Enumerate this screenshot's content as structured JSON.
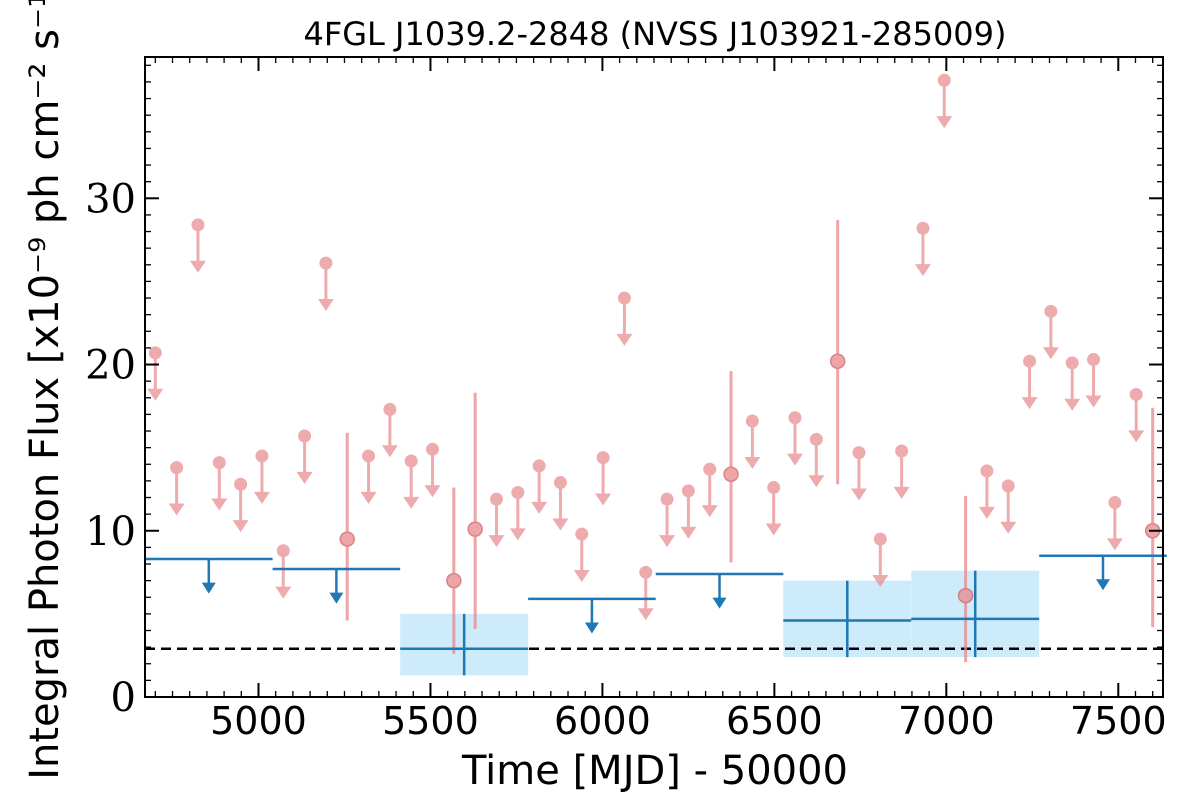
{
  "chart_data": {
    "type": "scatter",
    "title": "4FGL J1039.2-2848 (NVSS J103921-285009)",
    "xlabel": "Time [MJD] - 50000",
    "ylabel": "Integral Photon Flux [x10⁻⁹ ph cm⁻² s⁻¹]",
    "xlim": [
      4670,
      7630
    ],
    "ylim": [
      0,
      38.5
    ],
    "x_ticks": [
      5000,
      5500,
      6000,
      6500,
      7000,
      7500
    ],
    "y_ticks": [
      0,
      10,
      20,
      30
    ],
    "grid": false,
    "reference_line": {
      "y": 2.9,
      "style": "dashed",
      "color": "#000000"
    },
    "colors": {
      "monthly": "#e8888c",
      "yearly": "#1f77b4",
      "band": "#cdebfb"
    },
    "series": [
      {
        "binning": "monthly",
        "upper_limits": [
          {
            "x": 4700,
            "y": 20.7
          },
          {
            "x": 4762,
            "y": 13.8
          },
          {
            "x": 4824,
            "y": 28.4
          },
          {
            "x": 4886,
            "y": 14.1
          },
          {
            "x": 4948,
            "y": 12.8
          },
          {
            "x": 5010,
            "y": 14.5
          },
          {
            "x": 5072,
            "y": 8.8
          },
          {
            "x": 5134,
            "y": 15.7
          },
          {
            "x": 5196,
            "y": 26.1
          },
          {
            "x": 5320,
            "y": 14.5
          },
          {
            "x": 5382,
            "y": 17.3
          },
          {
            "x": 5444,
            "y": 14.2
          },
          {
            "x": 5506,
            "y": 14.9
          },
          {
            "x": 5692,
            "y": 11.9
          },
          {
            "x": 5754,
            "y": 12.3
          },
          {
            "x": 5816,
            "y": 13.9
          },
          {
            "x": 5878,
            "y": 12.9
          },
          {
            "x": 5940,
            "y": 9.8
          },
          {
            "x": 6002,
            "y": 14.4
          },
          {
            "x": 6064,
            "y": 24.0
          },
          {
            "x": 6126,
            "y": 7.5
          },
          {
            "x": 6188,
            "y": 11.9
          },
          {
            "x": 6250,
            "y": 12.4
          },
          {
            "x": 6312,
            "y": 13.7
          },
          {
            "x": 6436,
            "y": 16.6
          },
          {
            "x": 6498,
            "y": 12.6
          },
          {
            "x": 6560,
            "y": 16.8
          },
          {
            "x": 6622,
            "y": 15.5
          },
          {
            "x": 6746,
            "y": 14.7
          },
          {
            "x": 6808,
            "y": 9.5
          },
          {
            "x": 6870,
            "y": 14.8
          },
          {
            "x": 6932,
            "y": 28.2
          },
          {
            "x": 6994,
            "y": 37.1
          },
          {
            "x": 7118,
            "y": 13.6
          },
          {
            "x": 7180,
            "y": 12.7
          },
          {
            "x": 7242,
            "y": 20.2
          },
          {
            "x": 7304,
            "y": 23.2
          },
          {
            "x": 7366,
            "y": 20.1
          },
          {
            "x": 7428,
            "y": 20.3
          },
          {
            "x": 7490,
            "y": 11.7
          },
          {
            "x": 7552,
            "y": 18.2
          }
        ],
        "detections": [
          {
            "x": 5258,
            "y": 9.5,
            "ylow": 4.6,
            "yhigh": 15.9
          },
          {
            "x": 5568,
            "y": 7.0,
            "ylow": 2.6,
            "yhigh": 12.6
          },
          {
            "x": 5630,
            "y": 10.1,
            "ylow": 4.1,
            "yhigh": 18.3
          },
          {
            "x": 6374,
            "y": 13.4,
            "ylow": 8.1,
            "yhigh": 19.6
          },
          {
            "x": 6684,
            "y": 20.2,
            "ylow": 12.8,
            "yhigh": 28.7
          },
          {
            "x": 7056,
            "y": 6.1,
            "ylow": 2.1,
            "yhigh": 12.1
          },
          {
            "x": 7600,
            "y": 10.0,
            "ylow": 4.2,
            "yhigh": 17.4
          }
        ]
      },
      {
        "binning": "yearly",
        "upper_limits": [
          {
            "x0": 4670,
            "x1": 5041,
            "y": 8.3
          },
          {
            "x0": 5041,
            "x1": 5412,
            "y": 7.7
          },
          {
            "x0": 5784,
            "x1": 6155,
            "y": 5.9
          },
          {
            "x0": 6155,
            "x1": 6526,
            "y": 7.4
          },
          {
            "x0": 7270,
            "x1": 7641,
            "y": 8.5
          }
        ],
        "detections": [
          {
            "x0": 5412,
            "x1": 5784,
            "y": 2.9,
            "ylow": 1.3,
            "yhigh": 5.0
          },
          {
            "x0": 6526,
            "x1": 6898,
            "y": 4.6,
            "ylow": 2.4,
            "yhigh": 7.0
          },
          {
            "x0": 6898,
            "x1": 7270,
            "y": 4.7,
            "ylow": 2.4,
            "yhigh": 7.6
          }
        ]
      }
    ]
  }
}
